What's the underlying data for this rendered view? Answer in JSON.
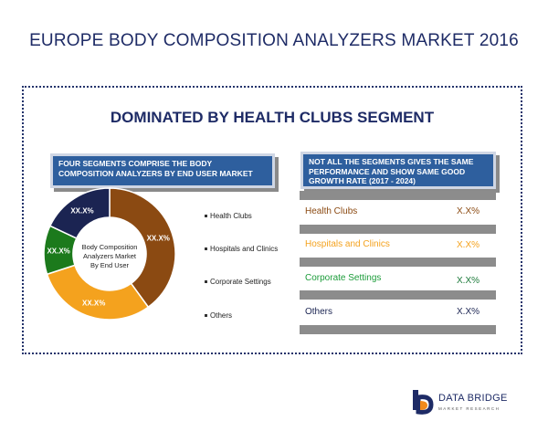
{
  "title": "EUROPE BODY COMPOSITION ANALYZERS MARKET 2016",
  "subtitle": "DOMINATED BY HEALTH CLUBS SEGMENT",
  "left_box": "FOUR SEGMENTS  COMPRISE  THE BODY COMPOSITION ANALYZERS  BY  END USER MARKET",
  "right_box": "NOT ALL THE SEGMENTS GIVES THE SAME PERFORMANCE AND  SHOW SAME GOOD GROWTH RATE (2017 - 2024)",
  "center_label": [
    "Body Composition",
    "Analyzers Market",
    "By End User"
  ],
  "chart_data": {
    "type": "pie",
    "donut": true,
    "categories": [
      "Health Clubs",
      "Hospitals and Clinics",
      "Corporate Settings",
      "Others"
    ],
    "values": [
      40,
      30,
      12,
      18
    ],
    "data_labels": [
      "XX.X%",
      "XX.X%",
      "XX.X%",
      "XX.X%"
    ],
    "colors": [
      "#8b4a12",
      "#f4a21e",
      "#1c7a1c",
      "#1b2452"
    ],
    "legend_placement": "right"
  },
  "growth_table": [
    {
      "label": "Health Clubs",
      "value": "X.X%",
      "label_color": "#8b4a12",
      "value_color": "#8b4a12"
    },
    {
      "label": "Hospitals and Clinics",
      "value": "X.X%",
      "label_color": "#f4a21e",
      "value_color": "#f4a21e"
    },
    {
      "label": "Corporate Settings",
      "value": "X.X%",
      "label_color": "#1c9c3a",
      "value_color": "#1c7a3a"
    },
    {
      "label": "Others",
      "value": "X.X%",
      "label_color": "#1b2452",
      "value_color": "#1b2452"
    }
  ],
  "logo": {
    "name": "DATA BRIDGE",
    "tagline": "MARKET RESEARCH"
  }
}
